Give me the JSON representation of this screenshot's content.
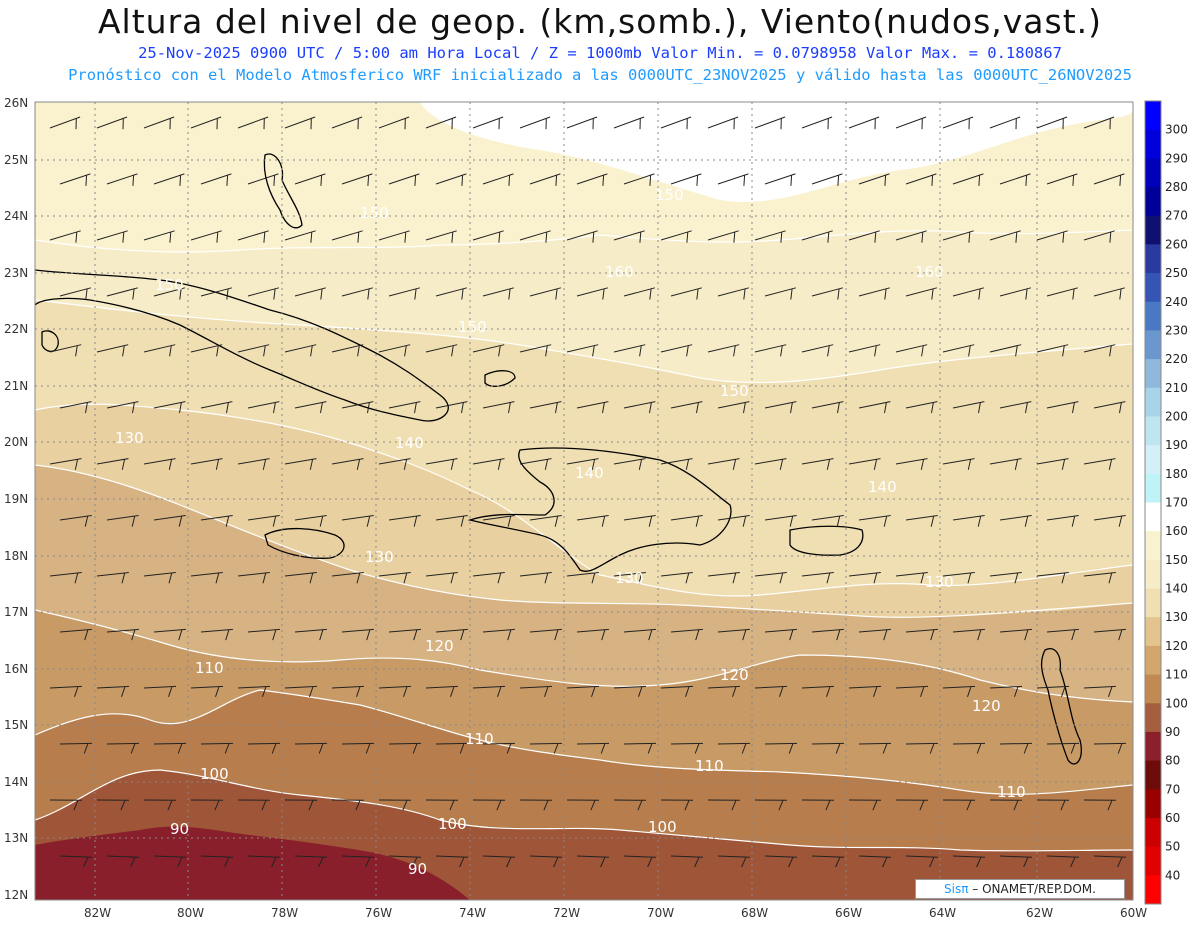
{
  "header": {
    "title": "Altura del nivel de geop. (km,somb.), Viento(nudos,vast.)",
    "line1": "25-Nov-2025  0900 UTC / 5:00 am Hora Local / Z = 1000mb  Valor Min. = 0.0798958  Valor Max. = 0.180867",
    "line2": "Pronóstico con el Modelo Atmosferico WRF inicializado a las 0000UTC_23NOV2025 y válido hasta las  0000UTC_26NOV2025"
  },
  "axes": {
    "lat_labels": [
      "26N",
      "25N",
      "24N",
      "23N",
      "22N",
      "21N",
      "20N",
      "19N",
      "18N",
      "17N",
      "16N",
      "15N",
      "14N",
      "13N",
      "12N"
    ],
    "lon_labels": [
      "82W",
      "80W",
      "78W",
      "76W",
      "74W",
      "72W",
      "70W",
      "68W",
      "66W",
      "64W",
      "62W",
      "60W"
    ]
  },
  "colorbar": {
    "labels": [
      "300",
      "290",
      "280",
      "270",
      "260",
      "250",
      "240",
      "230",
      "220",
      "210",
      "200",
      "190",
      "180",
      "170",
      "160",
      "150",
      "140",
      "130",
      "120",
      "110",
      "100",
      "90",
      "80",
      "70",
      "60",
      "50",
      "40"
    ],
    "colors": [
      "#0000ff",
      "#0000dd",
      "#0000bb",
      "#000099",
      "#101070",
      "#2a3aa0",
      "#3555b5",
      "#4a78c4",
      "#6b97cf",
      "#8fb8dc",
      "#a8d4ea",
      "#bfe6f0",
      "#d3f0f6",
      "#bff3f7",
      "#ffffff",
      "#faf2cf",
      "#f7ecc8",
      "#f0dfb2",
      "#e3c48f",
      "#d3a66e",
      "#c08a52",
      "#a55f3e",
      "#8b1f2b",
      "#6e0b0b",
      "#990000",
      "#cc0000",
      "#e20000",
      "#ff0000"
    ]
  },
  "contour_labels": [
    "150",
    "150",
    "160",
    "160",
    "150",
    "150",
    "150",
    "130",
    "140",
    "140",
    "140",
    "130",
    "130",
    "130",
    "120",
    "120",
    "120",
    "110",
    "110",
    "110",
    "110",
    "100",
    "100",
    "100",
    "90",
    "90"
  ],
  "credit": {
    "brand": "Sisπ",
    "text": " – ONAMET/REP.DOM."
  }
}
